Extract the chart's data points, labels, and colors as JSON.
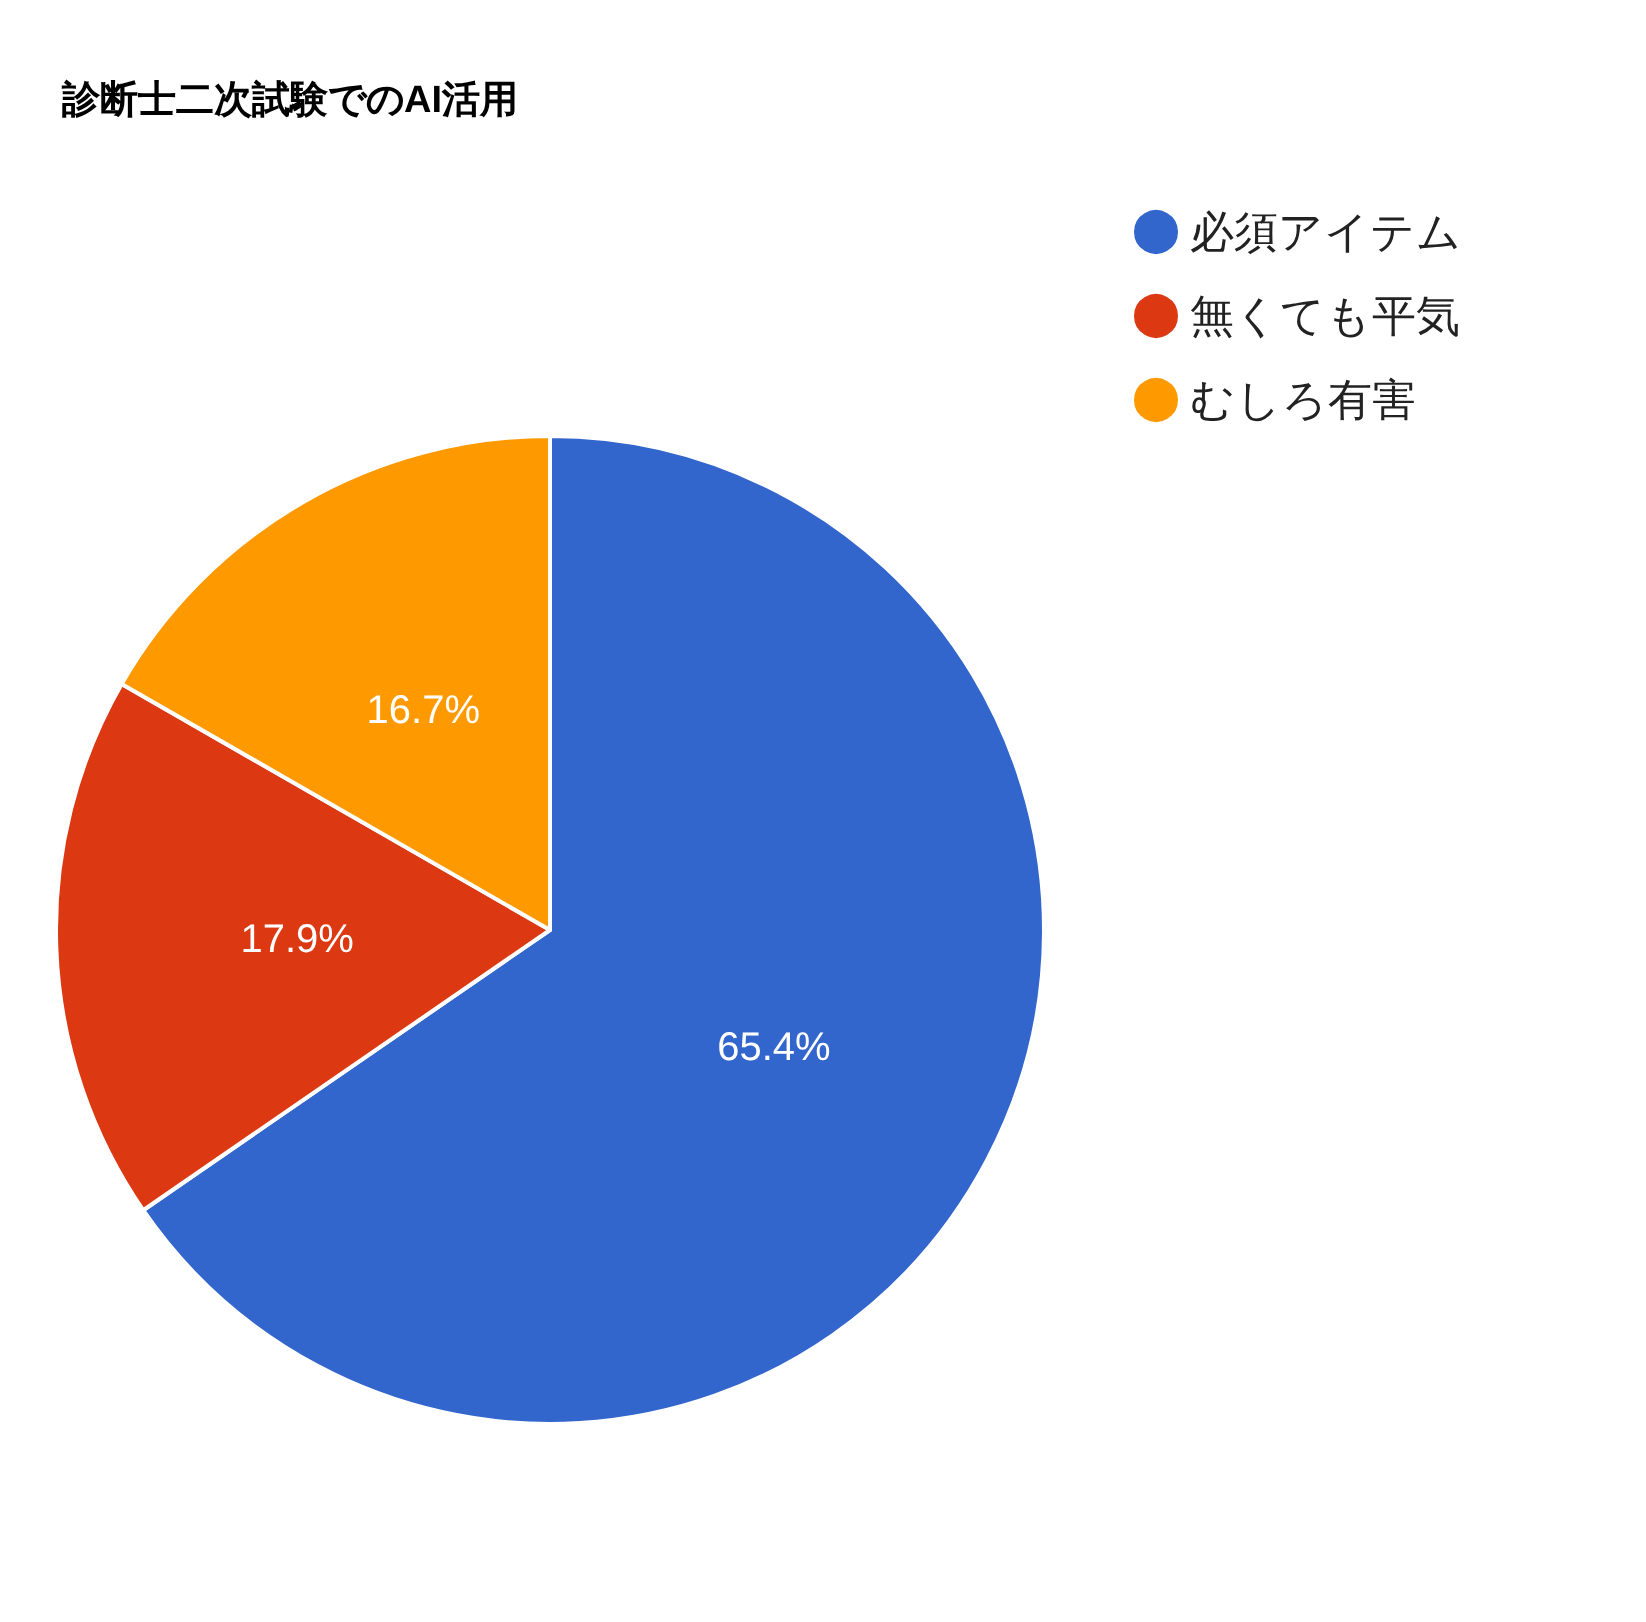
{
  "chart_data": {
    "type": "pie",
    "title": "診断士二次試験でのAI活用",
    "categories": [
      "必須アイテム",
      "無くても平気",
      "むしろ有害"
    ],
    "values": [
      65.4,
      17.9,
      16.7
    ],
    "value_labels": [
      "65.4%",
      "17.9%",
      "16.7%"
    ],
    "colors": [
      "#3366cc",
      "#dc3912",
      "#ff9900"
    ],
    "legend": "top right"
  }
}
